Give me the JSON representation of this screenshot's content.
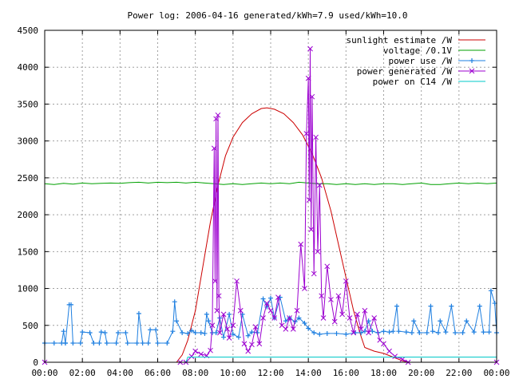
{
  "chart_data": {
    "type": "line",
    "title": "Power log: 2006-04-16 generated/kWh=7.9 used/kWh=10.0",
    "xlabel": "",
    "ylabel": "",
    "xlim": [
      0,
      24
    ],
    "ylim": [
      0,
      4500
    ],
    "x_ticks": [
      "00:00",
      "02:00",
      "04:00",
      "06:00",
      "08:00",
      "10:00",
      "12:00",
      "14:00",
      "16:00",
      "18:00",
      "20:00",
      "22:00",
      "00:00"
    ],
    "y_ticks": [
      0,
      500,
      1000,
      1500,
      2000,
      2500,
      3000,
      3500,
      4000,
      4500
    ],
    "grid": true,
    "legend_position": "top-right",
    "series": [
      {
        "name": "sunlight estimate /W",
        "color": "#cc0000",
        "marker": "none",
        "points": [
          [
            0,
            0
          ],
          [
            7.0,
            0
          ],
          [
            7.3,
            100
          ],
          [
            7.6,
            300
          ],
          [
            8.0,
            700
          ],
          [
            8.4,
            1300
          ],
          [
            8.8,
            1900
          ],
          [
            9.2,
            2400
          ],
          [
            9.6,
            2800
          ],
          [
            10.0,
            3050
          ],
          [
            10.5,
            3250
          ],
          [
            11.0,
            3370
          ],
          [
            11.5,
            3440
          ],
          [
            11.8,
            3450
          ],
          [
            12.2,
            3430
          ],
          [
            12.7,
            3370
          ],
          [
            13.2,
            3250
          ],
          [
            13.7,
            3080
          ],
          [
            14.2,
            2830
          ],
          [
            14.7,
            2500
          ],
          [
            15.2,
            2050
          ],
          [
            15.6,
            1600
          ],
          [
            16.0,
            1150
          ],
          [
            16.4,
            700
          ],
          [
            16.8,
            350
          ],
          [
            17.0,
            200
          ],
          [
            17.5,
            150
          ],
          [
            18.0,
            120
          ],
          [
            18.5,
            70
          ],
          [
            19.0,
            20
          ],
          [
            19.3,
            0
          ],
          [
            24,
            0
          ]
        ]
      },
      {
        "name": "voltage /0.1V",
        "color": "#00a000",
        "marker": "none",
        "points": [
          [
            0,
            2420
          ],
          [
            0.5,
            2410
          ],
          [
            1,
            2425
          ],
          [
            1.5,
            2415
          ],
          [
            2,
            2430
          ],
          [
            2.5,
            2420
          ],
          [
            3,
            2425
          ],
          [
            3.5,
            2430
          ],
          [
            4,
            2425
          ],
          [
            4.5,
            2435
          ],
          [
            5,
            2440
          ],
          [
            5.5,
            2430
          ],
          [
            6,
            2440
          ],
          [
            6.5,
            2435
          ],
          [
            7,
            2440
          ],
          [
            7.5,
            2430
          ],
          [
            8,
            2440
          ],
          [
            8.5,
            2430
          ],
          [
            9,
            2420
          ],
          [
            9.5,
            2410
          ],
          [
            10,
            2420
          ],
          [
            10.5,
            2410
          ],
          [
            11,
            2420
          ],
          [
            11.5,
            2430
          ],
          [
            12,
            2420
          ],
          [
            12.5,
            2430
          ],
          [
            13,
            2420
          ],
          [
            13.5,
            2440
          ],
          [
            14,
            2430
          ],
          [
            14.5,
            2420
          ],
          [
            15,
            2420
          ],
          [
            15.5,
            2410
          ],
          [
            16,
            2420
          ],
          [
            16.5,
            2410
          ],
          [
            17,
            2420
          ],
          [
            17.5,
            2410
          ],
          [
            18,
            2420
          ],
          [
            18.5,
            2420
          ],
          [
            19,
            2410
          ],
          [
            19.5,
            2420
          ],
          [
            20,
            2430
          ],
          [
            20.5,
            2410
          ],
          [
            21,
            2410
          ],
          [
            21.5,
            2420
          ],
          [
            22,
            2430
          ],
          [
            22.5,
            2420
          ],
          [
            23,
            2430
          ],
          [
            23.5,
            2420
          ],
          [
            24,
            2430
          ]
        ]
      },
      {
        "name": "power use /W",
        "color": "#1e7fe0",
        "marker": "plus",
        "points": [
          [
            0,
            260
          ],
          [
            0.5,
            260
          ],
          [
            0.9,
            260
          ],
          [
            1.0,
            420
          ],
          [
            1.1,
            260
          ],
          [
            1.1,
            260
          ],
          [
            1.3,
            780
          ],
          [
            1.4,
            780
          ],
          [
            1.5,
            260
          ],
          [
            1.9,
            260
          ],
          [
            2.0,
            410
          ],
          [
            2.4,
            400
          ],
          [
            2.6,
            260
          ],
          [
            2.9,
            260
          ],
          [
            3.0,
            410
          ],
          [
            3.2,
            400
          ],
          [
            3.3,
            260
          ],
          [
            3.8,
            260
          ],
          [
            3.9,
            400
          ],
          [
            4.3,
            400
          ],
          [
            4.4,
            260
          ],
          [
            4.9,
            260
          ],
          [
            5.0,
            660
          ],
          [
            5.2,
            260
          ],
          [
            5.5,
            260
          ],
          [
            5.6,
            440
          ],
          [
            5.9,
            440
          ],
          [
            6.0,
            260
          ],
          [
            6.5,
            260
          ],
          [
            6.8,
            420
          ],
          [
            6.9,
            820
          ],
          [
            7.0,
            560
          ],
          [
            7.3,
            400
          ],
          [
            7.6,
            390
          ],
          [
            7.8,
            430
          ],
          [
            8.0,
            400
          ],
          [
            8.3,
            400
          ],
          [
            8.5,
            390
          ],
          [
            8.6,
            650
          ],
          [
            8.7,
            560
          ],
          [
            8.9,
            400
          ],
          [
            9.1,
            400
          ],
          [
            9.3,
            600
          ],
          [
            9.5,
            340
          ],
          [
            9.8,
            650
          ],
          [
            10.0,
            380
          ],
          [
            10.3,
            340
          ],
          [
            10.5,
            650
          ],
          [
            10.8,
            360
          ],
          [
            11.0,
            410
          ],
          [
            11.3,
            400
          ],
          [
            11.6,
            860
          ],
          [
            11.8,
            750
          ],
          [
            12.0,
            870
          ],
          [
            12.2,
            600
          ],
          [
            12.5,
            880
          ],
          [
            12.8,
            560
          ],
          [
            13.0,
            600
          ],
          [
            13.3,
            550
          ],
          [
            13.5,
            600
          ],
          [
            13.8,
            530
          ],
          [
            14.0,
            460
          ],
          [
            14.3,
            400
          ],
          [
            14.6,
            380
          ],
          [
            15.0,
            390
          ],
          [
            15.5,
            390
          ],
          [
            16.0,
            380
          ],
          [
            16.5,
            400
          ],
          [
            16.8,
            400
          ],
          [
            17.0,
            420
          ],
          [
            17.2,
            560
          ],
          [
            17.4,
            420
          ],
          [
            17.7,
            400
          ],
          [
            18.0,
            420
          ],
          [
            18.3,
            410
          ],
          [
            18.5,
            420
          ],
          [
            18.7,
            760
          ],
          [
            18.8,
            420
          ],
          [
            19.2,
            410
          ],
          [
            19.5,
            400
          ],
          [
            19.6,
            560
          ],
          [
            19.9,
            400
          ],
          [
            20.3,
            400
          ],
          [
            20.5,
            760
          ],
          [
            20.6,
            420
          ],
          [
            20.9,
            400
          ],
          [
            21.0,
            560
          ],
          [
            21.3,
            410
          ],
          [
            21.6,
            760
          ],
          [
            21.8,
            400
          ],
          [
            22.2,
            400
          ],
          [
            22.4,
            560
          ],
          [
            22.8,
            410
          ],
          [
            23.1,
            760
          ],
          [
            23.3,
            410
          ],
          [
            23.6,
            410
          ],
          [
            23.7,
            970
          ],
          [
            23.9,
            800
          ],
          [
            24.0,
            400
          ]
        ]
      },
      {
        "name": "power generated /W",
        "color": "#9c00d0",
        "marker": "x",
        "points": [
          [
            0,
            0
          ],
          [
            7.2,
            0
          ],
          [
            7.5,
            0
          ],
          [
            7.8,
            80
          ],
          [
            8.0,
            150
          ],
          [
            8.3,
            110
          ],
          [
            8.6,
            90
          ],
          [
            8.8,
            160
          ],
          [
            8.9,
            500
          ],
          [
            9.0,
            2900
          ],
          [
            9.05,
            1100
          ],
          [
            9.1,
            3300
          ],
          [
            9.15,
            700
          ],
          [
            9.2,
            3350
          ],
          [
            9.25,
            900
          ],
          [
            9.3,
            400
          ],
          [
            9.5,
            650
          ],
          [
            9.7,
            450
          ],
          [
            9.8,
            330
          ],
          [
            10.0,
            500
          ],
          [
            10.2,
            1100
          ],
          [
            10.4,
            700
          ],
          [
            10.6,
            250
          ],
          [
            10.8,
            150
          ],
          [
            11.0,
            240
          ],
          [
            11.2,
            480
          ],
          [
            11.4,
            250
          ],
          [
            11.6,
            600
          ],
          [
            11.8,
            800
          ],
          [
            12.0,
            700
          ],
          [
            12.2,
            600
          ],
          [
            12.4,
            880
          ],
          [
            12.6,
            500
          ],
          [
            12.8,
            450
          ],
          [
            13.0,
            600
          ],
          [
            13.2,
            450
          ],
          [
            13.4,
            700
          ],
          [
            13.6,
            1600
          ],
          [
            13.8,
            1000
          ],
          [
            13.9,
            3100
          ],
          [
            14.0,
            3850
          ],
          [
            14.05,
            2200
          ],
          [
            14.1,
            4250
          ],
          [
            14.15,
            1800
          ],
          [
            14.2,
            3600
          ],
          [
            14.3,
            1200
          ],
          [
            14.4,
            3050
          ],
          [
            14.5,
            1500
          ],
          [
            14.6,
            2400
          ],
          [
            14.7,
            900
          ],
          [
            14.8,
            600
          ],
          [
            15.0,
            1300
          ],
          [
            15.2,
            850
          ],
          [
            15.4,
            550
          ],
          [
            15.6,
            900
          ],
          [
            15.8,
            650
          ],
          [
            16.0,
            1100
          ],
          [
            16.2,
            600
          ],
          [
            16.4,
            400
          ],
          [
            16.6,
            650
          ],
          [
            16.8,
            450
          ],
          [
            17.0,
            700
          ],
          [
            17.2,
            400
          ],
          [
            17.5,
            600
          ],
          [
            17.8,
            300
          ],
          [
            18.0,
            250
          ],
          [
            18.3,
            150
          ],
          [
            18.6,
            80
          ],
          [
            19.0,
            40
          ],
          [
            19.3,
            0
          ],
          [
            24,
            0
          ]
        ]
      },
      {
        "name": "power on C14 /W",
        "color": "#00c8c8",
        "marker": "none",
        "points": [
          [
            0,
            0
          ],
          [
            7.5,
            0
          ],
          [
            7.6,
            70
          ],
          [
            12,
            70
          ],
          [
            18,
            70
          ],
          [
            24,
            70
          ]
        ]
      }
    ]
  }
}
